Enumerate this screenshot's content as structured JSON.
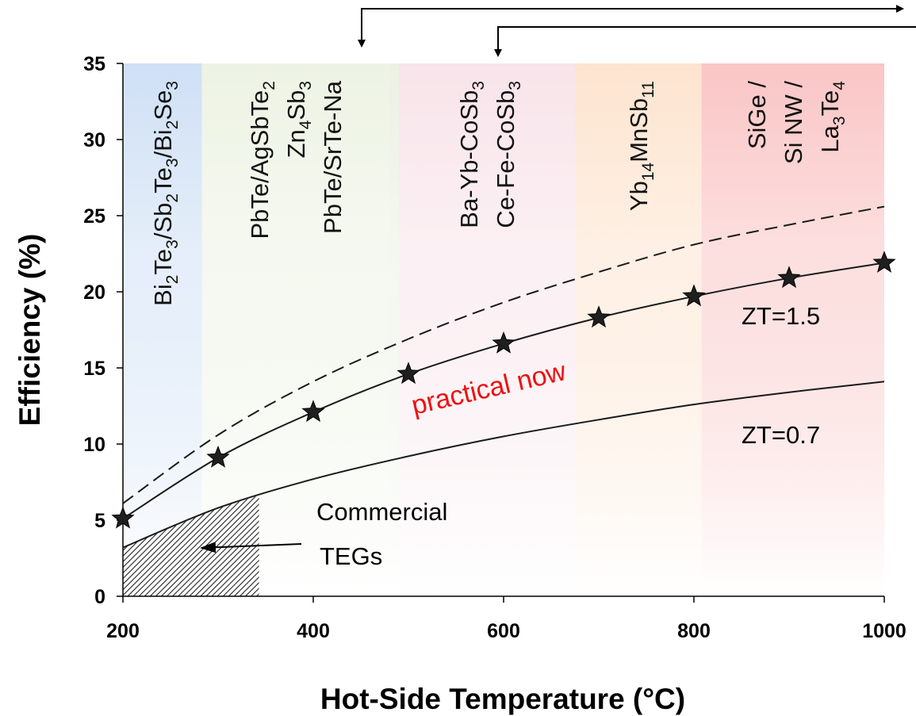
{
  "chart_data": {
    "type": "line",
    "xlabel": "Hot-Side Temperature (°C)",
    "ylabel": "Efficiency (%)",
    "xlim": [
      200,
      1000
    ],
    "ylim": [
      0,
      35
    ],
    "xticks": [
      200,
      400,
      600,
      800,
      1000
    ],
    "yticks": [
      0,
      5,
      10,
      15,
      20,
      25,
      30,
      35
    ],
    "series": [
      {
        "name": "",
        "style": "dashed",
        "x": [
          200,
          300,
          400,
          500,
          600,
          700,
          800,
          900,
          1000
        ],
        "values": [
          6.1,
          10.6,
          14.1,
          16.9,
          19.3,
          21.3,
          23.1,
          24.4,
          25.6
        ]
      },
      {
        "name": "ZT=1.5",
        "style": "solid-star",
        "x": [
          200,
          300,
          400,
          500,
          600,
          700,
          800,
          900,
          1000
        ],
        "values": [
          5.1,
          9.1,
          12.1,
          14.6,
          16.6,
          18.3,
          19.7,
          20.9,
          21.9
        ]
      },
      {
        "name": "ZT=0.7",
        "style": "solid",
        "x": [
          200,
          300,
          400,
          500,
          600,
          700,
          800,
          900,
          1000
        ],
        "values": [
          3.2,
          5.8,
          7.7,
          9.2,
          10.5,
          11.6,
          12.6,
          13.4,
          14.1
        ]
      }
    ],
    "bands": [
      {
        "x0": 200,
        "x1": 283,
        "color": "#cfe0f5",
        "lines": [
          [
            {
              "t": "Bi"
            },
            {
              "t": "2",
              "s": "sub"
            },
            {
              "t": "Te"
            },
            {
              "t": "3",
              "s": "sub"
            },
            {
              "t": "/Sb"
            },
            {
              "t": "2",
              "s": "sub"
            },
            {
              "t": "Te"
            },
            {
              "t": "3",
              "s": "sub"
            },
            {
              "t": "/Bi"
            },
            {
              "t": "2",
              "s": "sub"
            },
            {
              "t": "Se"
            },
            {
              "t": "3",
              "s": "sub"
            }
          ]
        ]
      },
      {
        "x0": 283,
        "x1": 480,
        "color": "#edf3e4",
        "lines": [
          [
            {
              "t": "PbTe/AgSbTe"
            },
            {
              "t": "2",
              "s": "sub"
            }
          ],
          [
            {
              "t": "Zn"
            },
            {
              "t": "4",
              "s": "sub"
            },
            {
              "t": "Sb"
            },
            {
              "t": "3",
              "s": "sub"
            }
          ],
          [
            {
              "t": "PbTe/SrTe-Na"
            }
          ]
        ]
      },
      {
        "x0": 480,
        "x1": 490,
        "color": "#ebf1e3",
        "lines": []
      },
      {
        "x0": 490,
        "x1": 675,
        "color": "#f8e4ea",
        "lines": [
          [
            {
              "t": "Ba-Yb-CoSb"
            },
            {
              "t": "3",
              "s": "sub"
            }
          ],
          [
            {
              "t": "Ce-Fe-CoSb"
            },
            {
              "t": "3",
              "s": "sub"
            }
          ]
        ]
      },
      {
        "x0": 675,
        "x1": 808,
        "color": "#fde4cf",
        "lines": [
          [
            {
              "t": "Yb"
            },
            {
              "t": "14",
              "s": "sub"
            },
            {
              "t": "MnSb"
            },
            {
              "t": "11",
              "s": "sub"
            }
          ]
        ]
      },
      {
        "x0": 808,
        "x1": 1000,
        "color": "#fac5c5",
        "lines": [
          [
            {
              "t": "SiGe /"
            }
          ],
          [
            {
              "t": "Si NW /"
            }
          ],
          [
            {
              "t": "La"
            },
            {
              "t": "3",
              "s": "sub"
            },
            {
              "t": "Te"
            },
            {
              "t": "4",
              "s": "sub"
            }
          ]
        ]
      }
    ],
    "annotations": {
      "practical": "practical now",
      "commercial_line1": "Commercial",
      "commercial_line2": "TEGs"
    },
    "hatched_region": {
      "x0": 200,
      "x1": 343,
      "note": "under ZT=0.7 curve"
    },
    "colors": {
      "practical_text": "#ee1111",
      "band_fade_to": "#ffffff"
    }
  }
}
